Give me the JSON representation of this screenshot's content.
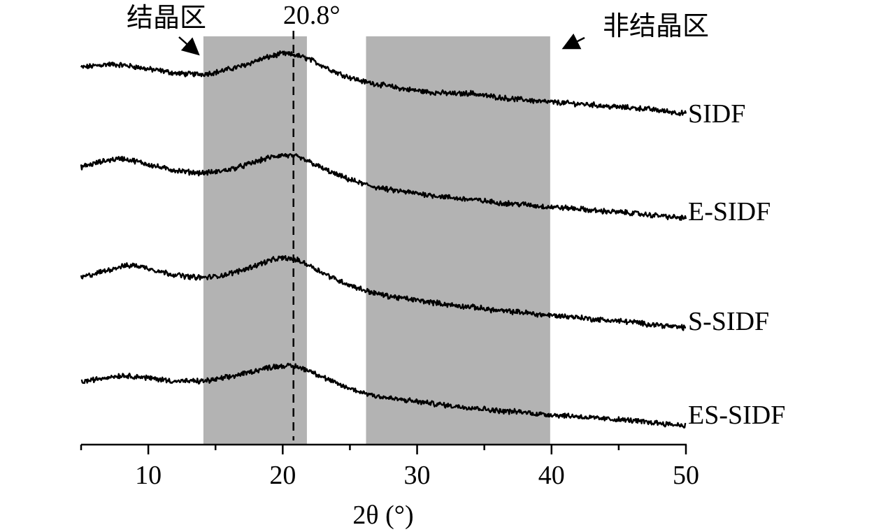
{
  "chart_data": {
    "type": "line",
    "xlabel": "2θ (°)",
    "xlim": [
      5,
      50
    ],
    "xticks": [
      10,
      20,
      30,
      40,
      50
    ],
    "y_axis": "none (stacked, offset traces; intensity in arbitrary units)",
    "series": [
      {
        "name": "SIDF",
        "points": [
          [
            5,
            0.78
          ],
          [
            6,
            0.8
          ],
          [
            7,
            0.82
          ],
          [
            8,
            0.81
          ],
          [
            9,
            0.79
          ],
          [
            10,
            0.76
          ],
          [
            11,
            0.74
          ],
          [
            12,
            0.71
          ],
          [
            13,
            0.7
          ],
          [
            14,
            0.7
          ],
          [
            15,
            0.72
          ],
          [
            16,
            0.76
          ],
          [
            17,
            0.8
          ],
          [
            18,
            0.86
          ],
          [
            19,
            0.91
          ],
          [
            20,
            0.95
          ],
          [
            21,
            0.93
          ],
          [
            22,
            0.88
          ],
          [
            23,
            0.8
          ],
          [
            24,
            0.72
          ],
          [
            25,
            0.66
          ],
          [
            26,
            0.61
          ],
          [
            27,
            0.58
          ],
          [
            28,
            0.55
          ],
          [
            29,
            0.52
          ],
          [
            30,
            0.5
          ],
          [
            31,
            0.48
          ],
          [
            32,
            0.47
          ],
          [
            33,
            0.46
          ],
          [
            34,
            0.47
          ],
          [
            35,
            0.44
          ],
          [
            36,
            0.42
          ],
          [
            37,
            0.4
          ],
          [
            38,
            0.39
          ],
          [
            39,
            0.37
          ],
          [
            40,
            0.36
          ],
          [
            41,
            0.35
          ],
          [
            42,
            0.34
          ],
          [
            43,
            0.33
          ],
          [
            44,
            0.31
          ],
          [
            45,
            0.3
          ],
          [
            46,
            0.29
          ],
          [
            47,
            0.28
          ],
          [
            48,
            0.26
          ],
          [
            49,
            0.24
          ],
          [
            50,
            0.22
          ]
        ]
      },
      {
        "name": "E-SIDF",
        "points": [
          [
            5,
            0.8
          ],
          [
            6,
            0.84
          ],
          [
            7,
            0.88
          ],
          [
            8,
            0.9
          ],
          [
            9,
            0.87
          ],
          [
            10,
            0.83
          ],
          [
            11,
            0.79
          ],
          [
            12,
            0.76
          ],
          [
            13,
            0.74
          ],
          [
            14,
            0.73
          ],
          [
            15,
            0.74
          ],
          [
            16,
            0.77
          ],
          [
            17,
            0.81
          ],
          [
            18,
            0.86
          ],
          [
            19,
            0.91
          ],
          [
            20,
            0.94
          ],
          [
            21,
            0.92
          ],
          [
            22,
            0.86
          ],
          [
            23,
            0.78
          ],
          [
            24,
            0.71
          ],
          [
            25,
            0.65
          ],
          [
            26,
            0.6
          ],
          [
            27,
            0.56
          ],
          [
            28,
            0.53
          ],
          [
            29,
            0.51
          ],
          [
            30,
            0.49
          ],
          [
            31,
            0.47
          ],
          [
            32,
            0.45
          ],
          [
            33,
            0.43
          ],
          [
            34,
            0.42
          ],
          [
            35,
            0.4
          ],
          [
            36,
            0.38
          ],
          [
            37,
            0.37
          ],
          [
            38,
            0.36
          ],
          [
            39,
            0.34
          ],
          [
            40,
            0.33
          ],
          [
            41,
            0.32
          ],
          [
            42,
            0.31
          ],
          [
            43,
            0.29
          ],
          [
            44,
            0.28
          ],
          [
            45,
            0.27
          ],
          [
            46,
            0.26
          ],
          [
            47,
            0.24
          ],
          [
            48,
            0.23
          ],
          [
            49,
            0.21
          ],
          [
            50,
            0.2
          ]
        ]
      },
      {
        "name": "S-SIDF",
        "points": [
          [
            5,
            0.74
          ],
          [
            6,
            0.78
          ],
          [
            7,
            0.82
          ],
          [
            8,
            0.86
          ],
          [
            9,
            0.87
          ],
          [
            10,
            0.84
          ],
          [
            11,
            0.8
          ],
          [
            12,
            0.77
          ],
          [
            13,
            0.75
          ],
          [
            14,
            0.74
          ],
          [
            15,
            0.75
          ],
          [
            16,
            0.78
          ],
          [
            17,
            0.82
          ],
          [
            18,
            0.87
          ],
          [
            19,
            0.92
          ],
          [
            20,
            0.95
          ],
          [
            21,
            0.93
          ],
          [
            22,
            0.87
          ],
          [
            23,
            0.79
          ],
          [
            24,
            0.72
          ],
          [
            25,
            0.66
          ],
          [
            26,
            0.61
          ],
          [
            27,
            0.57
          ],
          [
            28,
            0.54
          ],
          [
            29,
            0.52
          ],
          [
            30,
            0.5
          ],
          [
            31,
            0.48
          ],
          [
            32,
            0.46
          ],
          [
            33,
            0.44
          ],
          [
            34,
            0.43
          ],
          [
            35,
            0.41
          ],
          [
            36,
            0.39
          ],
          [
            37,
            0.38
          ],
          [
            38,
            0.37
          ],
          [
            39,
            0.35
          ],
          [
            40,
            0.34
          ],
          [
            41,
            0.33
          ],
          [
            42,
            0.32
          ],
          [
            43,
            0.3
          ],
          [
            44,
            0.29
          ],
          [
            45,
            0.28
          ],
          [
            46,
            0.27
          ],
          [
            47,
            0.25
          ],
          [
            48,
            0.24
          ],
          [
            49,
            0.22
          ],
          [
            50,
            0.21
          ]
        ]
      },
      {
        "name": "ES-SIDF",
        "points": [
          [
            5,
            0.76
          ],
          [
            6,
            0.79
          ],
          [
            7,
            0.82
          ],
          [
            8,
            0.84
          ],
          [
            9,
            0.83
          ],
          [
            10,
            0.81
          ],
          [
            11,
            0.79
          ],
          [
            12,
            0.77
          ],
          [
            13,
            0.77
          ],
          [
            14,
            0.77
          ],
          [
            15,
            0.79
          ],
          [
            16,
            0.82
          ],
          [
            17,
            0.86
          ],
          [
            18,
            0.9
          ],
          [
            19,
            0.94
          ],
          [
            20,
            0.96
          ],
          [
            21,
            0.95
          ],
          [
            22,
            0.9
          ],
          [
            23,
            0.82
          ],
          [
            24,
            0.74
          ],
          [
            25,
            0.68
          ],
          [
            26,
            0.63
          ],
          [
            27,
            0.59
          ],
          [
            28,
            0.56
          ],
          [
            29,
            0.54
          ],
          [
            30,
            0.52
          ],
          [
            31,
            0.5
          ],
          [
            32,
            0.48
          ],
          [
            33,
            0.46
          ],
          [
            34,
            0.45
          ],
          [
            35,
            0.43
          ],
          [
            36,
            0.41
          ],
          [
            37,
            0.4
          ],
          [
            38,
            0.39
          ],
          [
            39,
            0.37
          ],
          [
            40,
            0.36
          ],
          [
            41,
            0.35
          ],
          [
            42,
            0.34
          ],
          [
            43,
            0.32
          ],
          [
            44,
            0.31
          ],
          [
            45,
            0.3
          ],
          [
            46,
            0.29
          ],
          [
            47,
            0.27
          ],
          [
            48,
            0.26
          ],
          [
            49,
            0.24
          ],
          [
            50,
            0.23
          ]
        ]
      }
    ],
    "shaded_regions": [
      {
        "label": "结晶区",
        "x_start": 14.1,
        "x_end": 21.8
      },
      {
        "label": "非结晶区",
        "x_start": 26.2,
        "x_end": 39.9
      }
    ],
    "reference_line": {
      "x": 20.8,
      "label": "20.8°",
      "style": "dashed"
    },
    "grid": false,
    "legend": "none (series labelled at right end of each trace)"
  }
}
